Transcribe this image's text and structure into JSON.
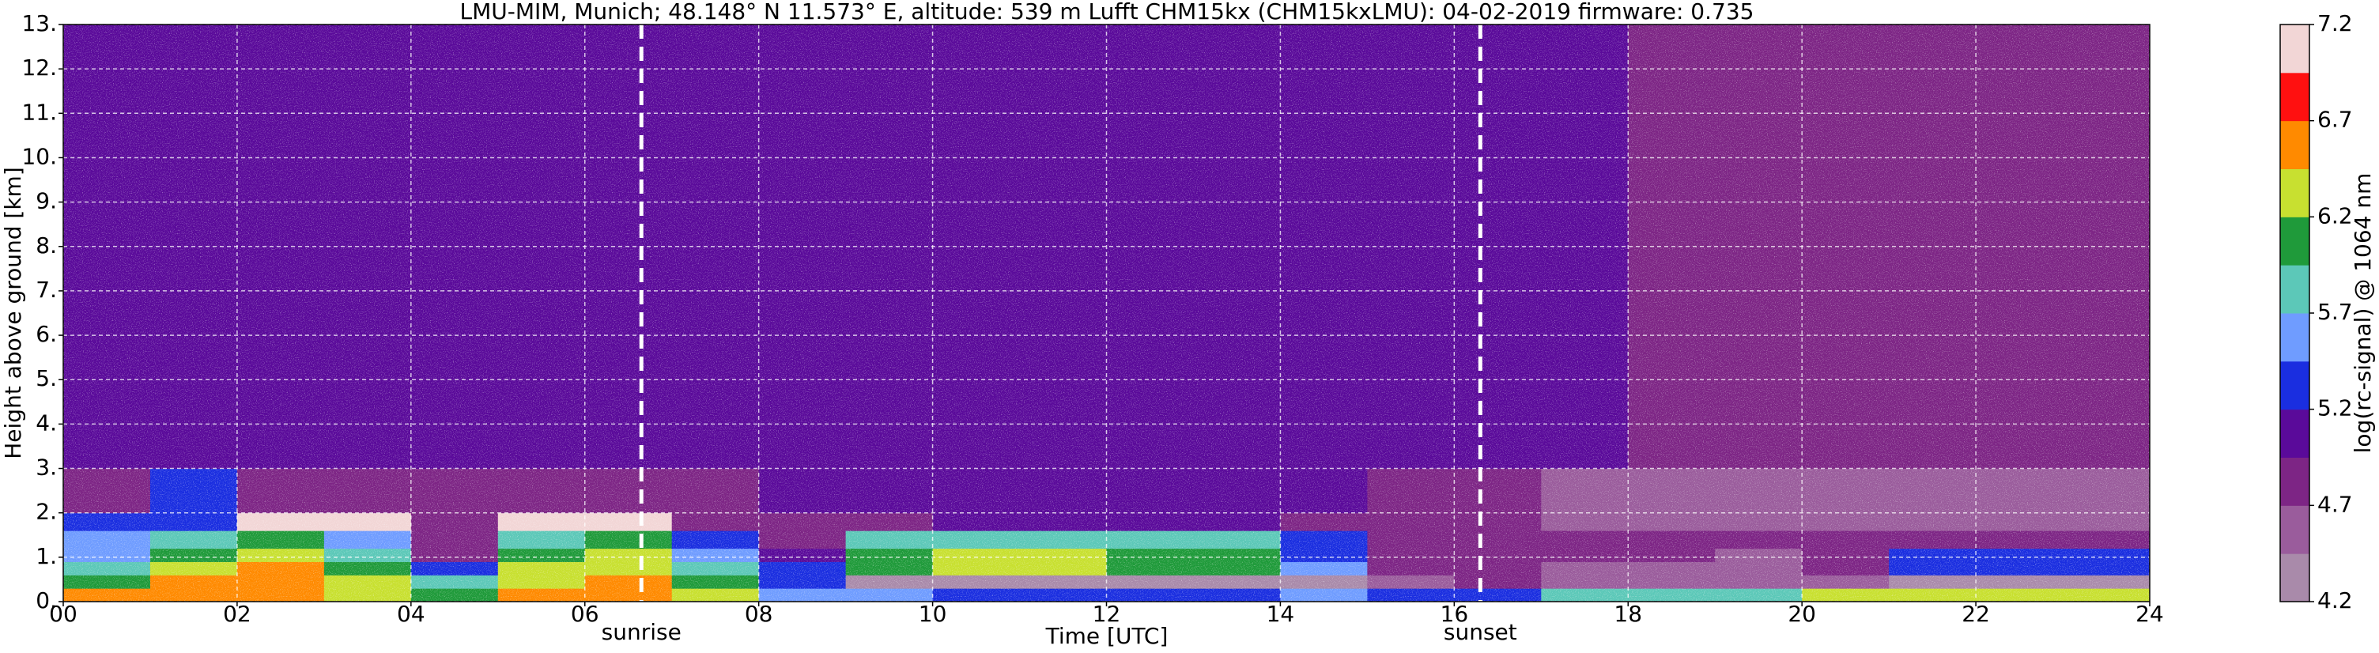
{
  "chart_data": {
    "type": "heatmap",
    "title": "LMU-MIM, Munich; 48.148° N 11.573° E, altitude: 539 m    Lufft CHM15kx (CHM15kxLMU): 04-02-2019    firmware: 0.735",
    "xlabel": "Time [UTC]",
    "ylabel": "Height above ground [km]",
    "colorbar_label": "log(rc-signal) @ 1064 nm",
    "x": [
      0,
      1,
      2,
      3,
      4,
      5,
      6,
      7,
      8,
      9,
      10,
      11,
      12,
      13,
      14,
      15,
      16,
      17,
      18,
      19,
      20,
      21,
      22,
      23,
      24
    ],
    "y": [
      0,
      0.3,
      0.6,
      0.9,
      1.2,
      1.6,
      2.0,
      3.0,
      13
    ],
    "z": [
      [
        6.5,
        6.6,
        6.5,
        6.3,
        6.0,
        6.5,
        6.6,
        6.4,
        5.6,
        5.5,
        5.4,
        5.4,
        5.4,
        5.4,
        5.5,
        5.4,
        5.3,
        5.9,
        5.9,
        5.9,
        6.3,
        6.4,
        6.4,
        6.4
      ],
      [
        6.0,
        6.5,
        6.6,
        6.2,
        5.7,
        6.3,
        6.5,
        6.0,
        5.4,
        4.2,
        4.2,
        4.2,
        4.2,
        4.2,
        4.3,
        4.6,
        4.7,
        4.5,
        4.5,
        4.5,
        4.5,
        4.2,
        4.2,
        4.2
      ],
      [
        5.8,
        6.3,
        6.5,
        6.0,
        5.2,
        6.2,
        6.4,
        5.8,
        5.2,
        6.0,
        6.2,
        6.3,
        6.0,
        6.1,
        5.6,
        4.8,
        4.8,
        4.6,
        4.5,
        4.5,
        4.8,
        5.4,
        5.4,
        5.4
      ],
      [
        5.6,
        6.0,
        6.4,
        5.9,
        4.9,
        6.0,
        6.2,
        5.5,
        5.0,
        6.1,
        6.3,
        6.2,
        6.1,
        6.0,
        5.4,
        4.8,
        4.7,
        4.9,
        4.7,
        4.6,
        4.9,
        5.3,
        5.3,
        5.3
      ],
      [
        5.5,
        5.7,
        6.0,
        5.6,
        4.9,
        5.8,
        6.0,
        5.4,
        4.9,
        5.8,
        5.9,
        5.8,
        5.7,
        5.8,
        5.2,
        4.9,
        4.9,
        4.8,
        4.8,
        4.7,
        4.9,
        4.9,
        4.9,
        4.9
      ],
      [
        5.4,
        5.2,
        7.0,
        7.0,
        4.9,
        7.0,
        7.0,
        4.9,
        4.8,
        4.9,
        5.0,
        5.0,
        5.0,
        5.0,
        4.9,
        4.8,
        4.7,
        4.6,
        4.5,
        4.5,
        4.6,
        4.6,
        4.6,
        4.6
      ],
      [
        4.9,
        5.2,
        4.9,
        4.9,
        4.9,
        4.9,
        4.9,
        4.9,
        5.0,
        5.1,
        5.1,
        5.1,
        5.1,
        5.1,
        5.0,
        4.9,
        4.8,
        4.6,
        4.5,
        4.5,
        4.5,
        4.5,
        4.5,
        4.5
      ],
      [
        5.0,
        5.0,
        5.0,
        5.0,
        5.0,
        5.0,
        5.1,
        5.1,
        5.1,
        5.1,
        5.1,
        5.1,
        5.1,
        5.1,
        5.1,
        5.1,
        5.0,
        5.0,
        4.9,
        4.9,
        4.9,
        4.9,
        4.9,
        4.9
      ]
    ],
    "colormap": [
      "#a98aaa",
      "#9a5c9c",
      "#7d2585",
      "#5a0a9a",
      "#1a2ee0",
      "#6f9cff",
      "#5cc8b8",
      "#1f9a3a",
      "#c8e030",
      "#ff8a00",
      "#ff1010",
      "#f2d6d6"
    ],
    "clim": [
      4.2,
      7.2
    ],
    "cticks": [
      4.2,
      4.7,
      5.2,
      5.7,
      6.2,
      6.7,
      7.2
    ],
    "xlim": [
      0,
      24
    ],
    "ylim": [
      0,
      13
    ],
    "xticks": [
      {
        "value": 0,
        "label": "00"
      },
      {
        "value": 2,
        "label": "02"
      },
      {
        "value": 4,
        "label": "04"
      },
      {
        "value": 6,
        "label": "06"
      },
      {
        "value": 8,
        "label": "08"
      },
      {
        "value": 10,
        "label": "10"
      },
      {
        "value": 12,
        "label": "12"
      },
      {
        "value": 14,
        "label": "14"
      },
      {
        "value": 16,
        "label": "16"
      },
      {
        "value": 18,
        "label": "18"
      },
      {
        "value": 20,
        "label": "20"
      },
      {
        "value": 22,
        "label": "22"
      },
      {
        "value": 24,
        "label": "24"
      }
    ],
    "yticks": [
      {
        "value": 0,
        "label": "0."
      },
      {
        "value": 1,
        "label": "1."
      },
      {
        "value": 2,
        "label": "2."
      },
      {
        "value": 3,
        "label": "3."
      },
      {
        "value": 4,
        "label": "4."
      },
      {
        "value": 5,
        "label": "5."
      },
      {
        "value": 6,
        "label": "6."
      },
      {
        "value": 7,
        "label": "7."
      },
      {
        "value": 8,
        "label": "8."
      },
      {
        "value": 9,
        "label": "9."
      },
      {
        "value": 10,
        "label": "10."
      },
      {
        "value": 11,
        "label": "11."
      },
      {
        "value": 12,
        "label": "12."
      },
      {
        "value": 13,
        "label": "13."
      }
    ],
    "grid": true,
    "annotations": [
      {
        "text": "sunrise",
        "x": 6.65
      },
      {
        "text": "sunset",
        "x": 16.3
      }
    ]
  }
}
